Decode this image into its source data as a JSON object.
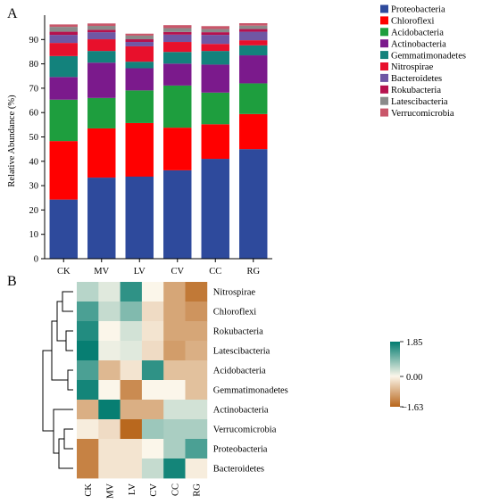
{
  "panels": {
    "a": "A",
    "b": "B"
  },
  "chart_data": [
    {
      "type": "bar",
      "stacked": true,
      "ylabel": "Relative Abundance (%)",
      "ylim": [
        0,
        100
      ],
      "yticks": [
        0,
        10,
        20,
        30,
        40,
        50,
        60,
        70,
        80,
        90
      ],
      "categories": [
        "CK",
        "MV",
        "LV",
        "CV",
        "CC",
        "RG"
      ],
      "legend_position": "right",
      "series": [
        {
          "name": "Proteobacteria",
          "color": "#2e4a9c",
          "values": [
            24.3,
            33.3,
            33.7,
            36.3,
            41.0,
            45.0
          ]
        },
        {
          "name": "Chloroflexi",
          "color": "#ff0000",
          "values": [
            24.0,
            20.2,
            22.0,
            17.5,
            14.2,
            14.4
          ]
        },
        {
          "name": "Acidobacteria",
          "color": "#1e9e3e",
          "values": [
            17.0,
            12.5,
            13.4,
            17.3,
            13.0,
            12.6
          ]
        },
        {
          "name": "Actinobacteria",
          "color": "#7b1a8c",
          "values": [
            9.3,
            14.5,
            9.1,
            9.0,
            11.5,
            11.5
          ]
        },
        {
          "name": "Gemmatimonadetes",
          "color": "#13827c",
          "values": [
            8.6,
            4.8,
            2.7,
            4.8,
            5.6,
            4.1
          ]
        },
        {
          "name": "Nitrospirae",
          "color": "#e8102c",
          "values": [
            5.4,
            4.8,
            6.3,
            4.1,
            2.9,
            2.1
          ]
        },
        {
          "name": "Bacteroidetes",
          "color": "#7057a4",
          "values": [
            3.3,
            2.9,
            1.8,
            3.0,
            3.7,
            3.5
          ]
        },
        {
          "name": "Rokubacteria",
          "color": "#b6124e",
          "values": [
            1.3,
            1.0,
            1.1,
            1.1,
            1.1,
            1.1
          ]
        },
        {
          "name": "Latescibacteria",
          "color": "#8a8a8a",
          "values": [
            2.0,
            1.6,
            1.5,
            1.6,
            1.3,
            1.4
          ]
        },
        {
          "name": "Verrucomicrobia",
          "color": "#c9566a",
          "values": [
            1.0,
            1.0,
            0.8,
            1.2,
            1.2,
            1.0
          ]
        }
      ]
    },
    {
      "type": "heatmap",
      "columns": [
        "CK",
        "MV",
        "LV",
        "CV",
        "CC",
        "RG"
      ],
      "rows": [
        "Nitrospirae",
        "Chloroflexi",
        "Rokubacteria",
        "Latescibacteria",
        "Acidobacteria",
        "Gemmatimonadetes",
        "Actinobacteria",
        "Verrucomicrobia",
        "Proteobacteria",
        "Bacteroidetes"
      ],
      "values": [
        [
          0.5,
          0.2,
          1.5,
          0.0,
          -0.9,
          -1.4
        ],
        [
          1.3,
          0.4,
          0.9,
          -0.3,
          -0.9,
          -1.1
        ],
        [
          1.6,
          0.0,
          0.3,
          -0.2,
          -0.9,
          -0.9
        ],
        [
          1.8,
          0.1,
          0.2,
          -0.3,
          -1.0,
          -0.8
        ],
        [
          1.3,
          -0.7,
          -0.2,
          1.5,
          -0.6,
          -0.6
        ],
        [
          1.7,
          0.0,
          -1.2,
          0.0,
          0.0,
          -0.6
        ],
        [
          -0.8,
          1.8,
          -0.8,
          -0.8,
          0.3,
          0.3
        ],
        [
          -0.1,
          -0.3,
          -1.6,
          0.7,
          0.6,
          0.6
        ],
        [
          -1.3,
          -0.2,
          -0.2,
          0.0,
          0.6,
          1.3
        ],
        [
          -1.3,
          -0.2,
          -0.2,
          0.4,
          1.7,
          -0.1
        ]
      ],
      "colorbar": {
        "min": -1.63,
        "max": 1.85,
        "tick_labels": [
          "1.85",
          "0.00",
          "−1.63"
        ],
        "colors": {
          "low": "#b8651a",
          "mid": "#fbf6ea",
          "high": "#007b6f"
        }
      },
      "row_dendrogram": true
    }
  ]
}
